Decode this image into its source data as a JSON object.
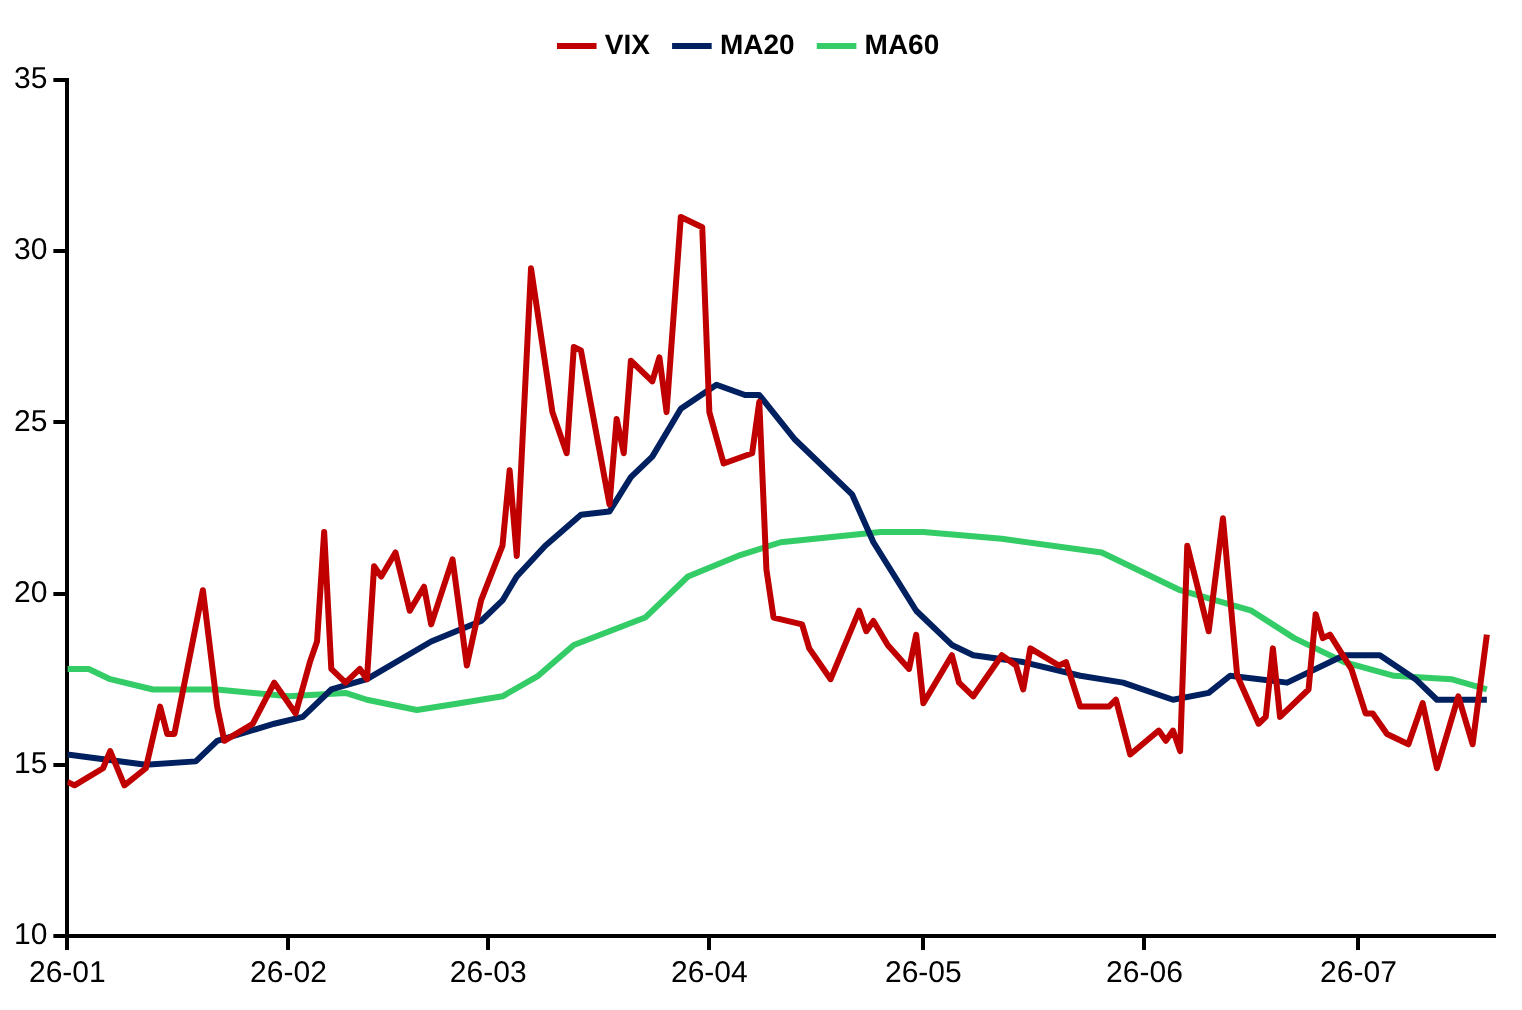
{
  "chart_data": {
    "type": "line",
    "xlim": [
      "--01-01",
      "--07-20"
    ],
    "xticks": [
      {
        "value": "--01-01",
        "label": "26-01"
      },
      {
        "value": "--02-01",
        "label": "26-02"
      },
      {
        "value": "--03-01",
        "label": "26-03"
      },
      {
        "value": "--04-01",
        "label": "26-04"
      },
      {
        "value": "--05-01",
        "label": "26-05"
      },
      {
        "value": "--06-01",
        "label": "26-06"
      },
      {
        "value": "--07-01",
        "label": "26-07"
      }
    ],
    "ylim": [
      10,
      35
    ],
    "yticks": [
      10,
      15,
      20,
      25,
      30,
      35
    ],
    "grid": false,
    "legend": "top",
    "marker": "none",
    "line_style": "solid",
    "series": [
      {
        "name": "VIX",
        "color": "#c00000",
        "x": [
          "--01-01",
          "--01-02",
          "--01-06",
          "--01-07",
          "--01-09",
          "--01-12",
          "--01-14",
          "--01-15",
          "--01-16",
          "--01-20",
          "--01-22",
          "--01-23",
          "--01-27",
          "--01-30",
          "--02-02",
          "--02-04",
          "--02-05",
          "--02-06",
          "--02-07",
          "--02-09",
          "--02-11",
          "--02-12",
          "--02-13",
          "--02-14",
          "--02-16",
          "--02-18",
          "--02-20",
          "--02-21",
          "--02-24",
          "--02-26",
          "--02-28",
          "--03-03",
          "--03-04",
          "--03-05",
          "--03-07",
          "--03-10",
          "--03-12",
          "--03-13",
          "--03-14",
          "--03-18",
          "--03-19",
          "--03-20",
          "--03-21",
          "--03-24",
          "--03-25",
          "--03-26",
          "--03-28",
          "--03-31",
          "--04-01",
          "--04-03",
          "--04-07",
          "--04-08",
          "--04-09",
          "--04-10",
          "--04-14",
          "--04-15",
          "--04-18",
          "--04-22",
          "--04-23",
          "--04-24",
          "--04-26",
          "--04-29",
          "--04-30",
          "--05-01",
          "--05-05",
          "--05-06",
          "--05-08",
          "--05-12",
          "--05-14",
          "--05-15",
          "--05-16",
          "--05-20",
          "--05-21",
          "--05-23",
          "--05-27",
          "--05-28",
          "--05-30",
          "--06-03",
          "--06-04",
          "--06-05",
          "--06-06",
          "--06-07",
          "--06-10",
          "--06-12",
          "--06-14",
          "--06-17",
          "--06-18",
          "--06-19",
          "--06-20",
          "--06-24",
          "--06-25",
          "--06-26",
          "--06-27",
          "--06-30",
          "--07-02",
          "--07-03",
          "--07-05",
          "--07-08",
          "--07-10",
          "--07-12",
          "--07-15",
          "--07-17",
          "--07-19"
        ],
        "values": [
          14.5,
          14.4,
          14.9,
          15.4,
          14.4,
          14.9,
          16.7,
          15.9,
          15.9,
          20.1,
          16.7,
          15.7,
          16.2,
          17.4,
          16.5,
          18.0,
          18.6,
          21.8,
          17.8,
          17.4,
          17.8,
          17.5,
          20.8,
          20.5,
          21.2,
          19.5,
          20.2,
          19.1,
          21.0,
          17.9,
          19.8,
          21.4,
          23.6,
          21.1,
          29.5,
          25.3,
          24.1,
          27.2,
          27.1,
          22.6,
          25.1,
          24.1,
          26.8,
          26.2,
          26.9,
          25.3,
          31.0,
          30.7,
          25.3,
          23.8,
          24.1,
          25.6,
          20.7,
          19.3,
          19.1,
          18.4,
          17.5,
          19.5,
          18.9,
          19.2,
          18.5,
          17.8,
          18.8,
          16.8,
          18.2,
          17.4,
          17.0,
          18.2,
          17.9,
          17.2,
          18.4,
          17.9,
          18.0,
          16.7,
          16.7,
          16.9,
          15.3,
          16.0,
          15.7,
          16.0,
          15.4,
          21.4,
          18.9,
          22.2,
          17.6,
          16.2,
          16.4,
          18.4,
          16.4,
          17.2,
          19.4,
          18.7,
          18.8,
          17.8,
          16.5,
          16.5,
          15.9,
          15.6,
          16.8,
          14.9,
          17.0,
          15.6,
          18.8
        ]
      },
      {
        "name": "MA20",
        "color": "#002060",
        "x": [
          "--01-01",
          "--01-12",
          "--01-19",
          "--01-22",
          "--01-30",
          "--02-03",
          "--02-07",
          "--02-12",
          "--02-21",
          "--02-28",
          "--03-03",
          "--03-05",
          "--03-09",
          "--03-14",
          "--03-18",
          "--03-21",
          "--03-24",
          "--03-28",
          "--04-02",
          "--04-06",
          "--04-08",
          "--04-13",
          "--04-21",
          "--04-24",
          "--04-30",
          "--05-05",
          "--05-08",
          "--05-15",
          "--05-23",
          "--05-29",
          "--06-05",
          "--06-10",
          "--06-13",
          "--06-21",
          "--06-29",
          "--07-04",
          "--07-09",
          "--07-12",
          "--07-19"
        ],
        "values": [
          15.3,
          15.0,
          15.1,
          15.7,
          16.2,
          16.4,
          17.2,
          17.5,
          18.6,
          19.2,
          19.8,
          20.5,
          21.4,
          22.3,
          22.4,
          23.4,
          24.0,
          25.4,
          26.1,
          25.8,
          25.8,
          24.5,
          22.9,
          21.5,
          19.5,
          18.5,
          18.2,
          18.0,
          17.6,
          17.4,
          16.9,
          17.1,
          17.6,
          17.4,
          18.2,
          18.2,
          17.5,
          16.9,
          16.9
        ]
      },
      {
        "name": "MA60",
        "color": "#33cc66",
        "x": [
          "--01-01",
          "--01-04",
          "--01-07",
          "--01-13",
          "--01-22",
          "--02-01",
          "--02-09",
          "--02-12",
          "--02-19",
          "--02-25",
          "--03-03",
          "--03-08",
          "--03-13",
          "--03-23",
          "--03-29",
          "--04-05",
          "--04-11",
          "--04-25",
          "--05-01",
          "--05-12",
          "--05-26",
          "--06-06",
          "--06-16",
          "--06-22",
          "--06-29",
          "--07-06",
          "--07-14",
          "--07-19"
        ],
        "values": [
          17.8,
          17.8,
          17.5,
          17.2,
          17.2,
          17.0,
          17.1,
          16.9,
          16.6,
          16.8,
          17.0,
          17.6,
          18.5,
          19.3,
          20.5,
          21.1,
          21.5,
          21.8,
          21.8,
          21.6,
          21.2,
          20.1,
          19.5,
          18.7,
          18.0,
          17.6,
          17.5,
          17.2
        ]
      }
    ]
  }
}
